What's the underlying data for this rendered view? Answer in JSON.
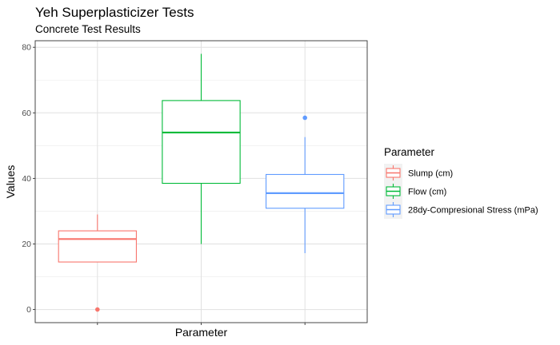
{
  "chart_data": {
    "type": "box",
    "title": "Yeh Superplasticizer Tests",
    "subtitle": "Concrete Test Results",
    "xlabel": "Parameter",
    "ylabel": "Values",
    "ylim": [
      -4,
      82
    ],
    "yticks": [
      0,
      20,
      40,
      60,
      80
    ],
    "grid": true,
    "legend": {
      "title": "Parameter",
      "position": "right",
      "entries": [
        "Slump (cm)",
        "Flow (cm)",
        "28dy-Compresional Stress (mPa)"
      ]
    },
    "series": [
      {
        "name": "Slump (cm)",
        "color": "#F8766D",
        "whisker_low": 14.5,
        "q1": 14.5,
        "median": 21.5,
        "q3": 24.0,
        "whisker_high": 29.0,
        "outliers": [
          0
        ]
      },
      {
        "name": "Flow (cm)",
        "color": "#00BA38",
        "whisker_low": 20.0,
        "q1": 38.5,
        "median": 54.0,
        "q3": 63.75,
        "whisker_high": 78.0,
        "outliers": []
      },
      {
        "name": "28dy-Compresional Stress (mPa)",
        "color": "#619CFF",
        "whisker_low": 17.2,
        "q1": 30.9,
        "median": 35.5,
        "q3": 41.2,
        "whisker_high": 52.6,
        "outliers": [
          58.5
        ]
      }
    ]
  }
}
